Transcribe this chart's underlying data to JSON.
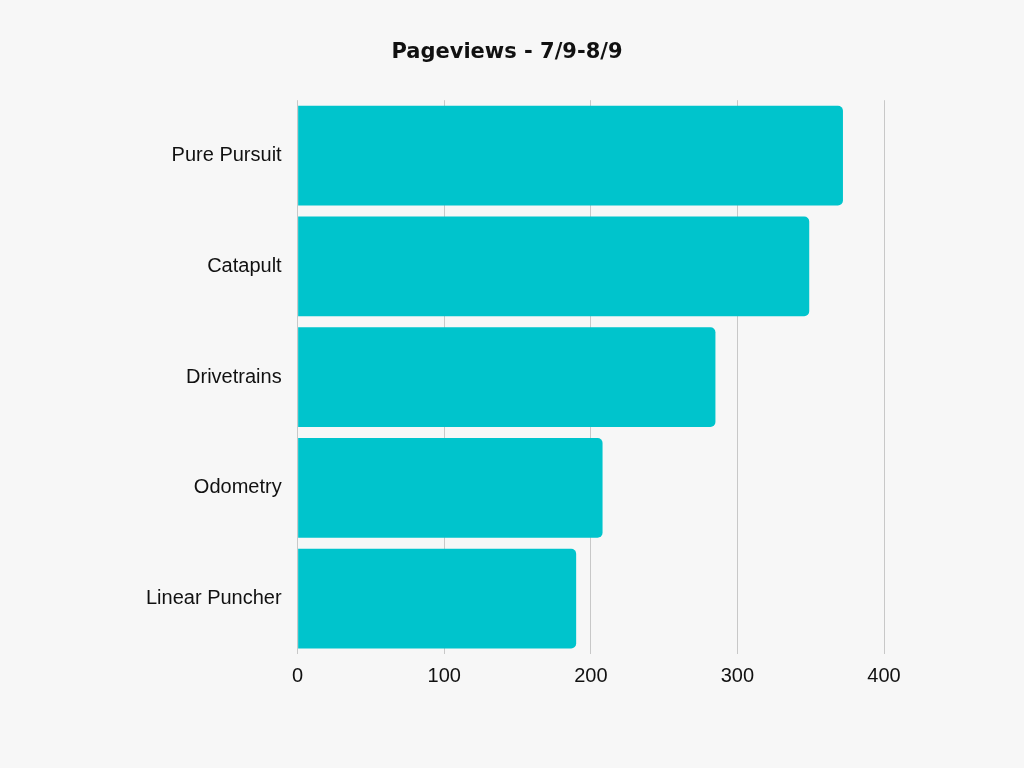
{
  "chart_data": {
    "type": "bar",
    "orientation": "horizontal",
    "title": "Pageviews - 7/9-8/9",
    "categories": [
      "Pure Pursuit",
      "Catapult",
      "Drivetrains",
      "Odometry",
      "Linear Puncher"
    ],
    "values": [
      372,
      349,
      285,
      208,
      190
    ],
    "color": "#00c4cc",
    "xlim": [
      0,
      400
    ],
    "xticks": [
      0,
      100,
      200,
      300,
      400
    ],
    "grid": "x"
  }
}
